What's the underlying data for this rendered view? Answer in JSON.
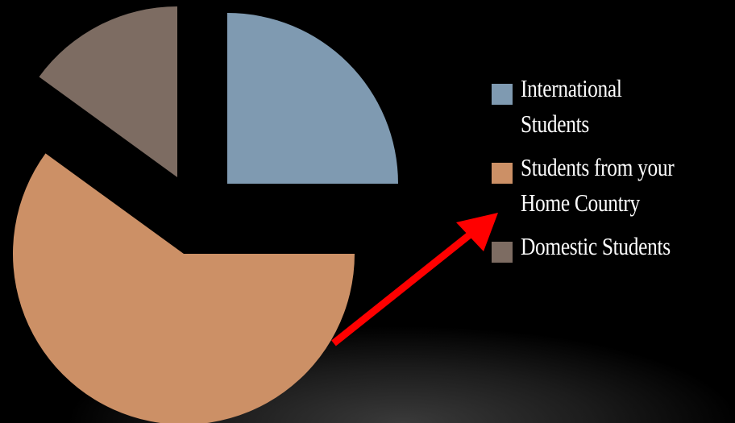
{
  "chart_data": {
    "type": "pie",
    "title": "",
    "exploded": true,
    "slices": [
      {
        "label": "International\nStudents",
        "value": 25,
        "color": "#7f9ab1"
      },
      {
        "label": "Students from your\nHome Country",
        "value": 60,
        "color": "#cc9066"
      },
      {
        "label": "Domestic Students",
        "value": 15,
        "color": "#7d6c62"
      }
    ],
    "legend_position": "right",
    "annotation": {
      "type": "arrow",
      "color": "#ff0000",
      "target": "Students from your\nHome Country"
    }
  }
}
